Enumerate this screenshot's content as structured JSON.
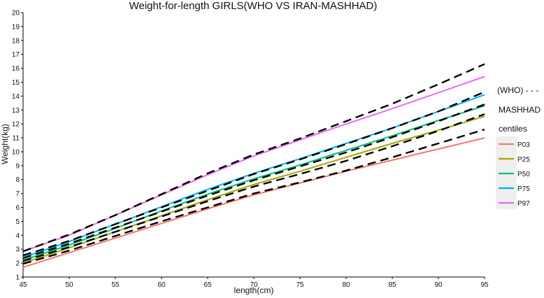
{
  "chart_data": {
    "type": "line",
    "title": "Weight-for-length GIRLS(WHO VS IRAN-MASHHAD)",
    "xlabel": "length(cm)",
    "ylabel": "Weight(kg)",
    "xlim": [
      45,
      95
    ],
    "ylim": [
      1,
      20
    ],
    "xticks": [
      45,
      50,
      55,
      60,
      65,
      70,
      75,
      80,
      85,
      90,
      95
    ],
    "yticks": [
      1,
      2,
      3,
      4,
      5,
      6,
      7,
      8,
      9,
      10,
      11,
      12,
      13,
      14,
      15,
      16,
      17,
      18,
      19,
      20
    ],
    "grid": false,
    "legend_position": "right",
    "legend": {
      "who_label": "(WHO) - - -",
      "mashhad_label": "MASHHAD",
      "centiles_title": "centiles"
    },
    "x": [
      45,
      50,
      55,
      60,
      65,
      70,
      75,
      80,
      85,
      90,
      95
    ],
    "series": [
      {
        "name": "P03",
        "group": "MASHHAD",
        "color": "#F8766D",
        "dashed": false,
        "values": [
          1.7,
          2.75,
          3.8,
          4.85,
          5.9,
          6.9,
          7.75,
          8.6,
          9.4,
          10.2,
          11.0
        ]
      },
      {
        "name": "P25",
        "group": "MASHHAD",
        "color": "#A3A500",
        "dashed": false,
        "values": [
          2.0,
          3.1,
          4.25,
          5.4,
          6.55,
          7.65,
          8.6,
          9.6,
          10.6,
          11.55,
          12.55
        ]
      },
      {
        "name": "P50",
        "group": "MASHHAD",
        "color": "#00BF7D",
        "dashed": false,
        "values": [
          2.2,
          3.3,
          4.5,
          5.75,
          6.95,
          8.05,
          9.05,
          10.1,
          11.15,
          12.25,
          13.3
        ]
      },
      {
        "name": "P75",
        "group": "MASHHAD",
        "color": "#00B0F6",
        "dashed": false,
        "values": [
          2.4,
          3.55,
          4.8,
          6.05,
          7.3,
          8.45,
          9.5,
          10.6,
          11.7,
          12.9,
          14.1
        ]
      },
      {
        "name": "P97",
        "group": "MASHHAD",
        "color": "#E76BF3",
        "dashed": false,
        "values": [
          2.85,
          4.0,
          5.45,
          6.9,
          8.35,
          9.7,
          10.85,
          12.0,
          13.1,
          14.25,
          15.4
        ]
      },
      {
        "group": "WHO",
        "color": "#000000",
        "dashed": true,
        "values": [
          1.95,
          2.9,
          3.95,
          5.0,
          6.0,
          7.0,
          7.8,
          8.65,
          9.6,
          10.6,
          11.6
        ]
      },
      {
        "group": "WHO",
        "color": "#000000",
        "dashed": true,
        "values": [
          2.15,
          3.15,
          4.25,
          5.35,
          6.45,
          7.5,
          8.4,
          9.35,
          10.4,
          11.5,
          12.7
        ]
      },
      {
        "group": "WHO",
        "color": "#000000",
        "dashed": true,
        "values": [
          2.35,
          3.4,
          4.55,
          5.7,
          6.85,
          7.95,
          8.95,
          9.95,
          11.05,
          12.2,
          13.4
        ]
      },
      {
        "group": "WHO",
        "color": "#000000",
        "dashed": true,
        "values": [
          2.55,
          3.6,
          4.8,
          6.0,
          7.2,
          8.4,
          9.45,
          10.55,
          11.7,
          12.9,
          14.3
        ]
      },
      {
        "group": "WHO",
        "color": "#000000",
        "dashed": true,
        "values": [
          2.85,
          4.05,
          5.45,
          6.95,
          8.45,
          9.8,
          10.95,
          12.2,
          13.45,
          14.85,
          16.3
        ]
      }
    ]
  }
}
